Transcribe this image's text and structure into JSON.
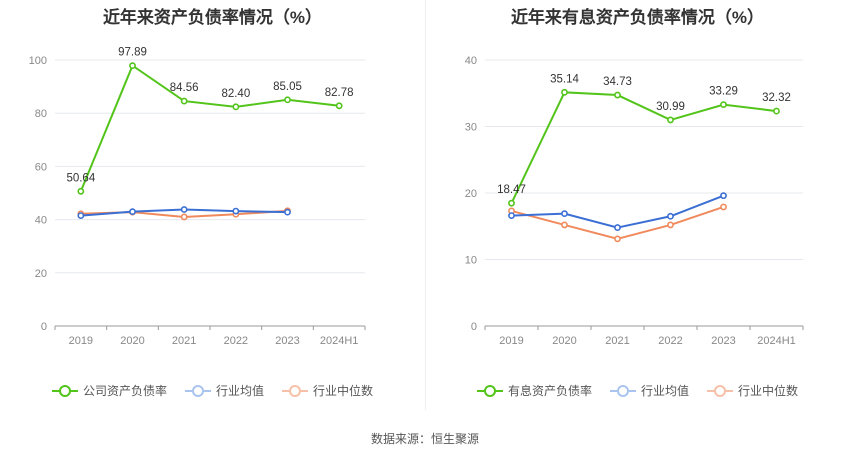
{
  "chart_data": [
    {
      "type": "line",
      "title": "近年来资产负债率情况（%）",
      "categories": [
        "2019",
        "2020",
        "2021",
        "2022",
        "2023",
        "2024H1"
      ],
      "ylim": [
        0,
        100
      ],
      "yticks": [
        0,
        20,
        40,
        60,
        80,
        100
      ],
      "series": [
        {
          "name": "公司资产负债率",
          "color": "#52c41a",
          "values": [
            50.64,
            97.89,
            84.56,
            82.4,
            85.05,
            82.78
          ],
          "value_labels": [
            "50.64",
            "97.89",
            "84.56",
            "82.40",
            "85.05",
            "82.78"
          ]
        },
        {
          "name": "行业均值",
          "color": "#3b6fd4",
          "values": [
            41.5,
            43.0,
            43.8,
            43.2,
            42.8,
            null
          ]
        },
        {
          "name": "行业中位数",
          "color": "#f08a5d",
          "values": [
            42.2,
            42.8,
            41.0,
            42.0,
            43.3,
            null
          ]
        }
      ]
    },
    {
      "type": "line",
      "title": "近年来有息资产负债率情况（%）",
      "categories": [
        "2019",
        "2020",
        "2021",
        "2022",
        "2023",
        "2024H1"
      ],
      "ylim": [
        0,
        40
      ],
      "yticks": [
        0,
        10,
        20,
        30,
        40
      ],
      "series": [
        {
          "name": "有息资产负债率",
          "color": "#52c41a",
          "values": [
            18.47,
            35.14,
            34.73,
            30.99,
            33.29,
            32.32
          ],
          "value_labels": [
            "18.47",
            "35.14",
            "34.73",
            "30.99",
            "33.29",
            "32.32"
          ]
        },
        {
          "name": "行业均值",
          "color": "#3b6fd4",
          "values": [
            16.6,
            16.9,
            14.8,
            16.5,
            19.6,
            null
          ]
        },
        {
          "name": "行业中位数",
          "color": "#f08a5d",
          "values": [
            17.3,
            15.2,
            13.1,
            15.2,
            17.9,
            null
          ]
        }
      ]
    }
  ],
  "footer": {
    "source": "数据来源：恒生聚源"
  }
}
